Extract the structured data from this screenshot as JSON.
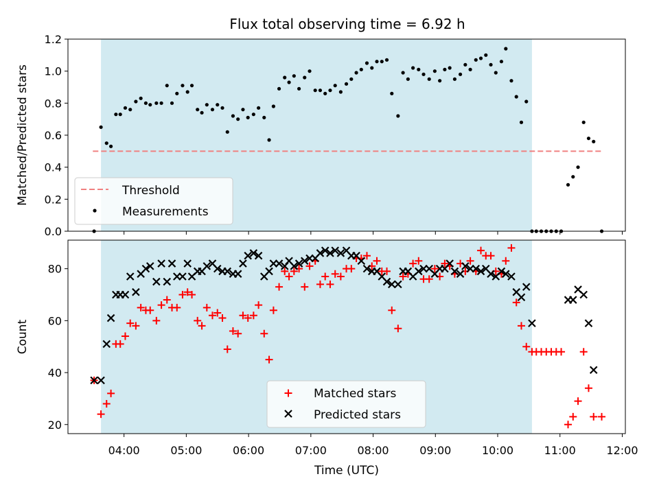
{
  "title": "Flux total observing time = 6.92 h",
  "colors": {
    "span": "#add8e6",
    "threshold": "#f08080",
    "matched": "#ff0000",
    "predicted": "#000000",
    "measure": "#000000"
  },
  "chart_data": [
    {
      "type": "scatter",
      "ylabel": "Matched/Predicted stars",
      "xlabel": "",
      "xlim": [
        3.1,
        12.05
      ],
      "ylim": [
        0,
        1.2
      ],
      "yticks": [
        0,
        0.2,
        0.4,
        0.6,
        0.8,
        1.0,
        1.2
      ],
      "ytick_labels": [
        "0.0",
        "0.2",
        "0.4",
        "0.6",
        "0.8",
        "1.0",
        "1.2"
      ],
      "xticks": [
        4,
        5,
        6,
        7,
        8,
        9,
        10,
        11,
        12
      ],
      "xtick_labels": [],
      "shaded_span": [
        3.63,
        10.55
      ],
      "threshold": {
        "name": "Threshold",
        "y": 0.5,
        "x": [
          3.5,
          11.7
        ]
      },
      "legend": {
        "position": "lower left",
        "entries": [
          "Threshold",
          "Measurements"
        ]
      },
      "series": [
        {
          "name": "Measurements",
          "x": [
            3.52,
            3.63,
            3.72,
            3.79,
            3.87,
            3.94,
            4.02,
            4.1,
            4.19,
            4.27,
            4.35,
            4.42,
            4.52,
            4.6,
            4.69,
            4.77,
            4.85,
            4.94,
            5.02,
            5.09,
            5.18,
            5.25,
            5.33,
            5.42,
            5.5,
            5.58,
            5.66,
            5.75,
            5.83,
            5.91,
            5.99,
            6.08,
            6.16,
            6.25,
            6.33,
            6.4,
            6.49,
            6.58,
            6.65,
            6.73,
            6.81,
            6.9,
            6.98,
            7.07,
            7.15,
            7.23,
            7.31,
            7.39,
            7.48,
            7.57,
            7.65,
            7.73,
            7.81,
            7.9,
            7.98,
            8.06,
            8.14,
            8.22,
            8.3,
            8.4,
            8.48,
            8.56,
            8.64,
            8.73,
            8.81,
            8.9,
            8.99,
            9.07,
            9.15,
            9.23,
            9.31,
            9.4,
            9.48,
            9.56,
            9.65,
            9.73,
            9.81,
            9.89,
            9.97,
            10.06,
            10.13,
            10.22,
            10.3,
            10.38,
            10.46,
            10.55,
            10.62,
            10.7,
            10.78,
            10.86,
            10.94,
            11.02,
            11.13,
            11.21,
            11.29,
            11.38,
            11.46,
            11.54,
            11.67
          ],
          "y": [
            0.0,
            0.65,
            0.55,
            0.53,
            0.73,
            0.73,
            0.77,
            0.76,
            0.81,
            0.83,
            0.8,
            0.79,
            0.8,
            0.8,
            0.91,
            0.8,
            0.86,
            0.91,
            0.87,
            0.91,
            0.76,
            0.74,
            0.79,
            0.76,
            0.79,
            0.77,
            0.62,
            0.72,
            0.7,
            0.76,
            0.71,
            0.73,
            0.77,
            0.71,
            0.57,
            0.78,
            0.89,
            0.96,
            0.93,
            0.97,
            0.89,
            0.96,
            1.0,
            0.88,
            0.88,
            0.86,
            0.88,
            0.91,
            0.87,
            0.92,
            0.95,
            0.99,
            1.01,
            1.05,
            1.02,
            1.06,
            1.06,
            1.07,
            0.86,
            0.72,
            0.99,
            0.95,
            1.02,
            1.01,
            0.98,
            0.95,
            1.0,
            0.94,
            1.01,
            1.02,
            0.95,
            0.98,
            1.04,
            1.01,
            1.07,
            1.08,
            1.1,
            1.04,
            0.99,
            1.06,
            1.14,
            0.94,
            0.84,
            0.68,
            0.81,
            0.0,
            0.0,
            0.0,
            0.0,
            0.0,
            0.0,
            0.0,
            0.29,
            0.34,
            0.4,
            0.68,
            0.58,
            0.56,
            0.0
          ]
        }
      ]
    },
    {
      "type": "scatter",
      "ylabel": "Count",
      "xlabel": "Time (UTC)",
      "xlim": [
        3.1,
        12.05
      ],
      "ylim": [
        16.5,
        91
      ],
      "yticks": [
        20,
        40,
        60,
        80
      ],
      "ytick_labels": [
        "20",
        "40",
        "60",
        "80"
      ],
      "xticks": [
        4,
        5,
        6,
        7,
        8,
        9,
        10,
        11,
        12
      ],
      "xtick_labels": [
        "04:00",
        "05:00",
        "06:00",
        "07:00",
        "08:00",
        "09:00",
        "10:00",
        "11:00",
        "12:00"
      ],
      "shaded_span": [
        3.63,
        10.55
      ],
      "legend": {
        "position": "lower center",
        "entries": [
          "Matched stars",
          "Predicted stars"
        ]
      },
      "series": [
        {
          "name": "Matched stars",
          "x": [
            3.52,
            3.63,
            3.72,
            3.79,
            3.87,
            3.94,
            4.02,
            4.1,
            4.19,
            4.27,
            4.35,
            4.42,
            4.52,
            4.6,
            4.69,
            4.77,
            4.85,
            4.94,
            5.02,
            5.09,
            5.18,
            5.25,
            5.33,
            5.42,
            5.5,
            5.58,
            5.66,
            5.75,
            5.83,
            5.91,
            5.99,
            6.08,
            6.16,
            6.25,
            6.33,
            6.4,
            6.49,
            6.58,
            6.65,
            6.73,
            6.81,
            6.9,
            6.98,
            7.07,
            7.15,
            7.23,
            7.31,
            7.39,
            7.48,
            7.57,
            7.65,
            7.73,
            7.81,
            7.9,
            7.98,
            8.06,
            8.14,
            8.22,
            8.3,
            8.4,
            8.48,
            8.56,
            8.64,
            8.73,
            8.81,
            8.9,
            8.99,
            9.07,
            9.15,
            9.23,
            9.31,
            9.4,
            9.48,
            9.56,
            9.65,
            9.73,
            9.81,
            9.89,
            9.97,
            10.06,
            10.13,
            10.22,
            10.3,
            10.38,
            10.46,
            10.55,
            10.62,
            10.7,
            10.78,
            10.86,
            10.94,
            11.02,
            11.13,
            11.21,
            11.29,
            11.38,
            11.46,
            11.54,
            11.67
          ],
          "y": [
            37,
            24,
            28,
            32,
            51,
            51,
            54,
            59,
            58,
            65,
            64,
            64,
            60,
            66,
            68,
            65,
            65,
            70,
            71,
            70,
            60,
            58,
            65,
            62,
            63,
            61,
            49,
            56,
            55,
            62,
            61,
            62,
            66,
            55,
            45,
            64,
            73,
            79,
            77,
            79,
            80,
            73,
            81,
            83,
            74,
            77,
            74,
            78,
            77,
            80,
            80,
            84,
            84,
            85,
            81,
            83,
            79,
            79,
            64,
            57,
            77,
            78,
            82,
            83,
            76,
            76,
            80,
            77,
            82,
            81,
            78,
            82,
            79,
            83,
            79,
            87,
            85,
            85,
            79,
            78,
            83,
            88,
            67,
            58,
            50,
            48,
            48,
            48,
            48,
            48,
            48,
            48,
            20,
            23,
            29,
            48,
            34,
            23,
            23
          ]
        },
        {
          "name": "Predicted stars",
          "x": [
            3.52,
            3.63,
            3.72,
            3.79,
            3.87,
            3.94,
            4.02,
            4.1,
            4.19,
            4.27,
            4.35,
            4.42,
            4.52,
            4.6,
            4.69,
            4.77,
            4.85,
            4.94,
            5.02,
            5.09,
            5.18,
            5.25,
            5.33,
            5.42,
            5.5,
            5.58,
            5.66,
            5.75,
            5.83,
            5.91,
            5.99,
            6.08,
            6.16,
            6.25,
            6.33,
            6.4,
            6.49,
            6.58,
            6.65,
            6.73,
            6.81,
            6.9,
            6.98,
            7.07,
            7.15,
            7.23,
            7.31,
            7.39,
            7.48,
            7.57,
            7.65,
            7.73,
            7.81,
            7.9,
            7.98,
            8.06,
            8.14,
            8.22,
            8.3,
            8.4,
            8.48,
            8.56,
            8.64,
            8.73,
            8.81,
            8.9,
            8.99,
            9.07,
            9.15,
            9.23,
            9.31,
            9.4,
            9.48,
            9.56,
            9.65,
            9.73,
            9.81,
            9.89,
            9.97,
            10.06,
            10.13,
            10.22,
            10.3,
            10.38,
            10.46,
            10.55,
            11.13,
            11.21,
            11.29,
            11.38,
            11.46,
            11.54
          ],
          "y": [
            37,
            37,
            51,
            61,
            70,
            70,
            70,
            77,
            71,
            78,
            80,
            81,
            75,
            82,
            75,
            82,
            77,
            77,
            82,
            77,
            79,
            79,
            81,
            82,
            80,
            79,
            79,
            78,
            78,
            82,
            85,
            86,
            85,
            77,
            79,
            82,
            82,
            81,
            83,
            81,
            82,
            83,
            84,
            84,
            86,
            87,
            86,
            87,
            86,
            87,
            85,
            85,
            83,
            80,
            79,
            79,
            77,
            75,
            74,
            74,
            79,
            79,
            77,
            79,
            80,
            80,
            78,
            80,
            80,
            82,
            79,
            78,
            81,
            80,
            80,
            79,
            80,
            78,
            77,
            79,
            78,
            77,
            71,
            69,
            73,
            59,
            68,
            68,
            72,
            70,
            59,
            41
          ]
        }
      ]
    }
  ]
}
